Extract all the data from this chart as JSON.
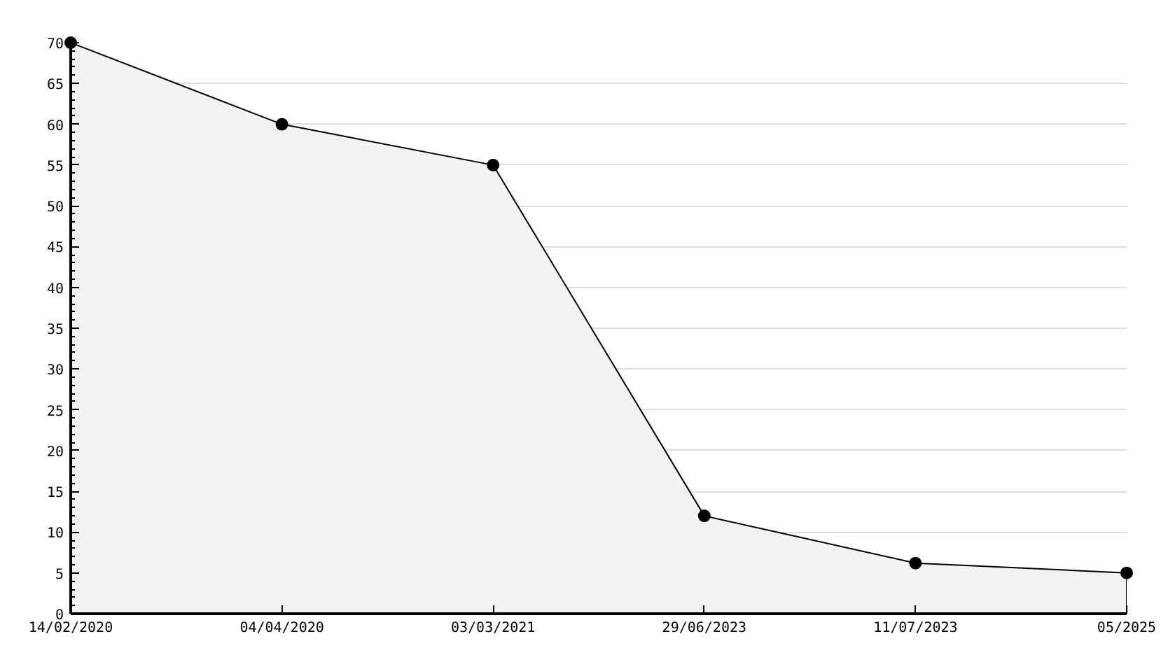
{
  "chart_data": {
    "type": "area",
    "categories": [
      "14/02/2020",
      "04/04/2020",
      "03/03/2021",
      "29/06/2023",
      "11/07/2023",
      "05/2025"
    ],
    "series": [
      {
        "color": "#000000",
        "values": [
          70,
          60,
          55,
          12,
          6.2,
          5
        ]
      }
    ],
    "ylim": [
      0,
      70
    ],
    "yticks": [
      0,
      5,
      10,
      15,
      20,
      25,
      30,
      35,
      40,
      45,
      50,
      55,
      60,
      65,
      70
    ],
    "grid": "y",
    "marker": "circle",
    "line_style": "solid"
  }
}
